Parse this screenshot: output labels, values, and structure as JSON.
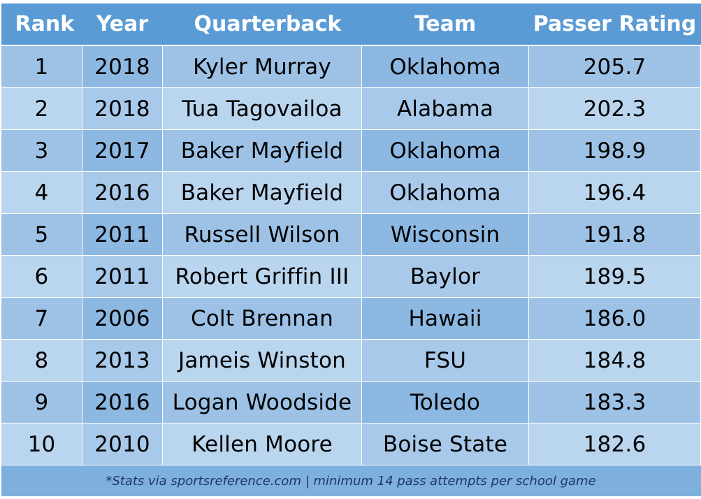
{
  "table": {
    "headers": [
      "Rank",
      "Year",
      "Quarterback",
      "Team",
      "Passer Rating"
    ],
    "rows": [
      [
        "1",
        "2018",
        "Kyler Murray",
        "Oklahoma",
        "205.7"
      ],
      [
        "2",
        "2018",
        "Tua Tagovailoa",
        "Alabama",
        "202.3"
      ],
      [
        "3",
        "2017",
        "Baker Mayfield",
        "Oklahoma",
        "198.9"
      ],
      [
        "4",
        "2016",
        "Baker Mayfield",
        "Oklahoma",
        "196.4"
      ],
      [
        "5",
        "2011",
        "Russell Wilson",
        "Wisconsin",
        "191.8"
      ],
      [
        "6",
        "2011",
        "Robert Griffin III",
        "Baylor",
        "189.5"
      ],
      [
        "7",
        "2006",
        "Colt Brennan",
        "Hawaii",
        "186.0"
      ],
      [
        "8",
        "2013",
        "Jameis Winston",
        "FSU",
        "184.8"
      ],
      [
        "9",
        "2016",
        "Logan Woodside",
        "Toledo",
        "183.3"
      ],
      [
        "10",
        "2010",
        "Kellen Moore",
        "Boise State",
        "182.6"
      ]
    ],
    "footnote": "*Stats via sportsreference.com | minimum 14 pass attempts per school game"
  },
  "colors": {
    "header_bg": "#5b9bd5",
    "row_dark": "#9ec2e6",
    "row_light": "#bad5ee",
    "footer_bg": "#7eb0de",
    "footer_text": "#1f3864"
  }
}
